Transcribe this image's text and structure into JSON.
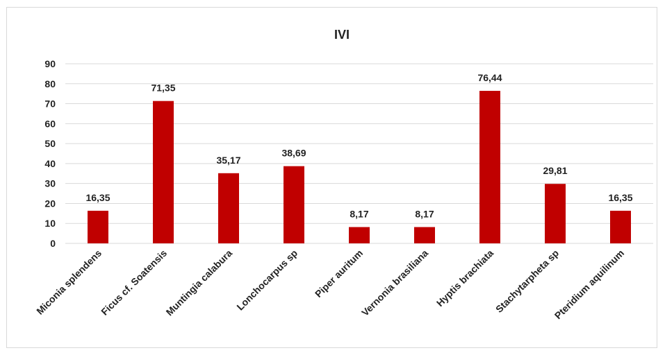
{
  "chart_data": {
    "type": "bar",
    "title": "IVI",
    "xlabel": "",
    "ylabel": "",
    "ylim": [
      0,
      90
    ],
    "yticks": [
      "0",
      "10",
      "20",
      "30",
      "40",
      "50",
      "60",
      "70",
      "80",
      "90"
    ],
    "grid": true,
    "legend": "none",
    "bar_color": "#c00000",
    "categories": [
      "Miconia splendens",
      "Ficus cf. Soatensis",
      "Muntingia calabura",
      "Lonchocarpus sp",
      "Piper auritum",
      "Vernonia brasiliana",
      "Hyptis brachiata",
      "Stachytarpheta sp",
      "Pteridium aquilinum"
    ],
    "values": [
      16.35,
      71.35,
      35.17,
      38.69,
      8.17,
      8.17,
      76.44,
      29.81,
      16.35
    ],
    "value_labels": [
      "16,35",
      "71,35",
      "35,17",
      "38,69",
      "8,17",
      "8,17",
      "76,44",
      "29,81",
      "16,35"
    ]
  }
}
